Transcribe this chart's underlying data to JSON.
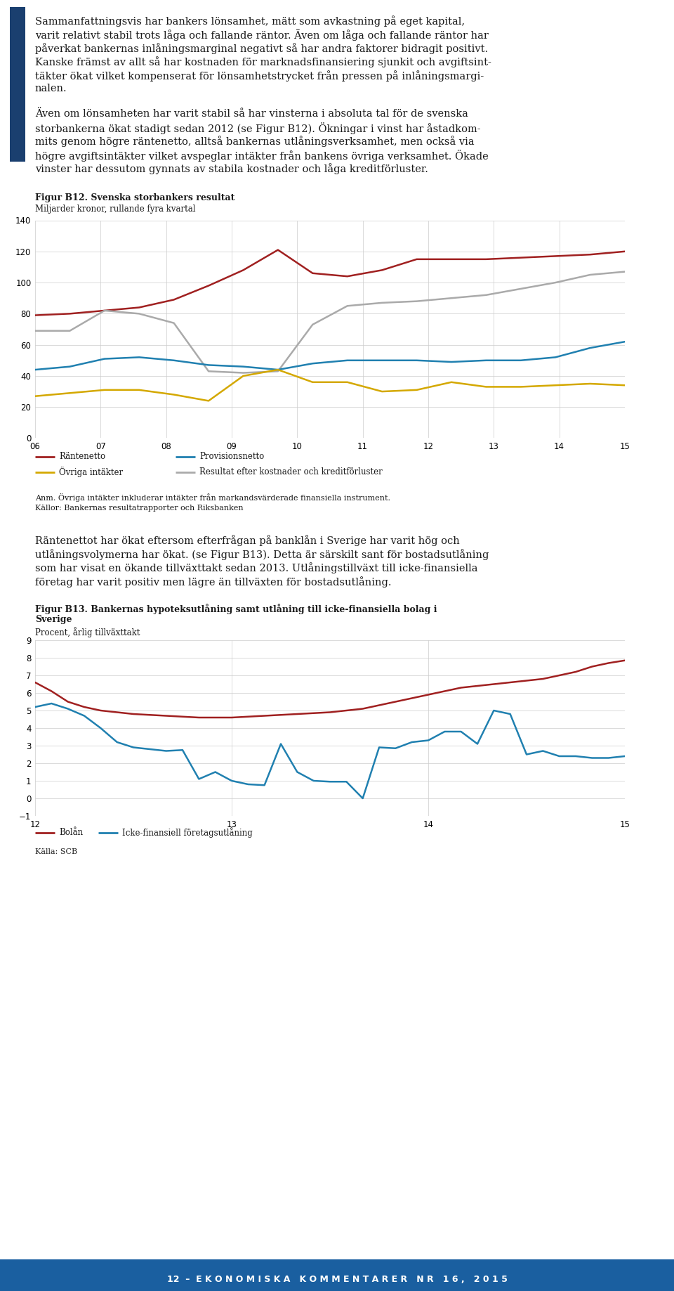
{
  "page_bg": "#ffffff",
  "blue_bar_color": "#1a3f6f",
  "footer_bg": "#1a5fa0",
  "footer_text_color": "#ffffff",
  "para1_lines": [
    "Sammanfattningsvis har bankers lönsamhet, mätt som avkastning på eget kapital,",
    "varit relativt stabil trots låga och fallande räntor. Även om låga och fallande räntor har",
    "påverkat bankernas inlåningsmarginal negativt så har andra faktorer bidragit positivt.",
    "Kanske främst av allt så har kostnaden för marknadsfinansiering sjunkit och avgiftsint-",
    "täkter ökat vilket kompenserat för lönsamhetstrycket från pressen på inlåningsmargi-",
    "nalen."
  ],
  "para2_lines": [
    "Även om lönsamheten har varit stabil så har vinsterna i absoluta tal för de svenska",
    "storbankerna ökat stadigt sedan 2012 (se Figur B12). Ökningar i vinst har åstadkom-",
    "mits genom högre räntenetto, alltså bankernas utlåningsverksamhet, men också via",
    "högre avgiftsintäkter vilket avspeglar intäkter från bankens övriga verksamhet. Ökade",
    "vinster har dessutom gynnats av stabila kostnader och låga kreditförluster."
  ],
  "fig1_title": "Figur B12. Svenska storbankers resultat",
  "fig1_subtitle": "Miljarder kronor, rullande fyra kvartal",
  "fig1_ylim": [
    0,
    140
  ],
  "fig1_yticks": [
    0,
    20,
    40,
    60,
    80,
    100,
    120,
    140
  ],
  "fig1_xlabels": [
    "06",
    "07",
    "08",
    "09",
    "10",
    "11",
    "12",
    "13",
    "14",
    "15"
  ],
  "fig1_rantenetto": [
    79,
    80,
    82,
    84,
    89,
    98,
    108,
    121,
    106,
    104,
    108,
    115,
    115,
    115,
    116,
    117,
    118,
    120
  ],
  "fig1_rantenetto_color": "#a02020",
  "fig1_provisionsnetto": [
    44,
    46,
    51,
    52,
    50,
    47,
    46,
    44,
    48,
    50,
    50,
    50,
    49,
    50,
    50,
    52,
    58,
    62
  ],
  "fig1_provisionsnetto_color": "#2080b0",
  "fig1_ovriga": [
    27,
    29,
    31,
    31,
    28,
    24,
    40,
    44,
    36,
    36,
    30,
    31,
    36,
    33,
    33,
    34,
    35,
    34
  ],
  "fig1_ovriga_color": "#d4a800",
  "fig1_resultat": [
    69,
    69,
    82,
    80,
    74,
    43,
    42,
    43,
    73,
    85,
    87,
    88,
    90,
    92,
    96,
    100,
    105,
    107
  ],
  "fig1_resultat_color": "#aaaaaa",
  "fig1_note": "Anm. Övriga intäkter inkluderar intäkter från markandsvärderade finansiella instrument.",
  "fig1_source": "Källor: Bankernas resultatrapporter och Riksbanken",
  "legend1_items": [
    {
      "label": "Räntenetto",
      "color": "#a02020"
    },
    {
      "label": "Provisionsnetto",
      "color": "#2080b0"
    },
    {
      "label": "Övriga intäkter",
      "color": "#d4a800"
    },
    {
      "label": "Resultat efter kostnader och kreditförluster",
      "color": "#aaaaaa"
    }
  ],
  "para3_lines": [
    "Räntenettot har ökat eftersom efterfrågan på banklån i Sverige har varit hög och",
    "utlåningsvolymerna har ökat. (se Figur B13). Detta är särskilt sant för bostadsutlåning",
    "som har visat en ökande tillväxttakt sedan 2013. Utlåningstillväxt till icke-finansiella",
    "företag har varit positiv men lägre än tillväxten för bostadsutlåning."
  ],
  "fig2_title_line1": "Figur B13. Bankernas hypoteksutlåning samt utlåning till icke-finansiella bolag i",
  "fig2_title_line2": "Sverige",
  "fig2_subtitle": "Procent, årlig tillväxttakt",
  "fig2_ylim": [
    -1,
    9
  ],
  "fig2_yticks": [
    -1,
    0,
    1,
    2,
    3,
    4,
    5,
    6,
    7,
    8,
    9
  ],
  "fig2_xlabels": [
    "12",
    "13",
    "14",
    "15"
  ],
  "fig2_bolan": [
    6.6,
    6.1,
    5.5,
    5.2,
    5.0,
    4.9,
    4.8,
    4.75,
    4.7,
    4.65,
    4.6,
    4.6,
    4.6,
    4.65,
    4.7,
    4.75,
    4.8,
    4.85,
    4.9,
    5.0,
    5.1,
    5.3,
    5.5,
    5.7,
    5.9,
    6.1,
    6.3,
    6.4,
    6.5,
    6.6,
    6.7,
    6.8,
    7.0,
    7.2,
    7.5,
    7.7,
    7.85
  ],
  "fig2_bolan_color": "#a02020",
  "fig2_ickefinans": [
    5.2,
    5.4,
    5.1,
    4.7,
    4.0,
    3.2,
    2.9,
    2.8,
    2.7,
    2.75,
    1.1,
    1.5,
    1.0,
    0.8,
    0.75,
    3.1,
    1.5,
    1.0,
    0.95,
    0.95,
    0.0,
    2.9,
    2.85,
    3.2,
    3.3,
    3.8,
    3.8,
    3.1,
    5.0,
    4.8,
    2.5,
    2.7,
    2.4,
    2.4,
    2.3,
    2.3,
    2.4
  ],
  "fig2_ickefinans_color": "#2080b0",
  "fig2_note": "Källa: SCB",
  "legend2_items": [
    {
      "label": "Bolån",
      "color": "#a02020"
    },
    {
      "label": "Icke-finansiell företagsutlåning",
      "color": "#2080b0"
    }
  ],
  "footer": "12  –  E K O N O M I S K A   K O M M E N T A R E R   N R   1 6 ,   2 0 1 5"
}
